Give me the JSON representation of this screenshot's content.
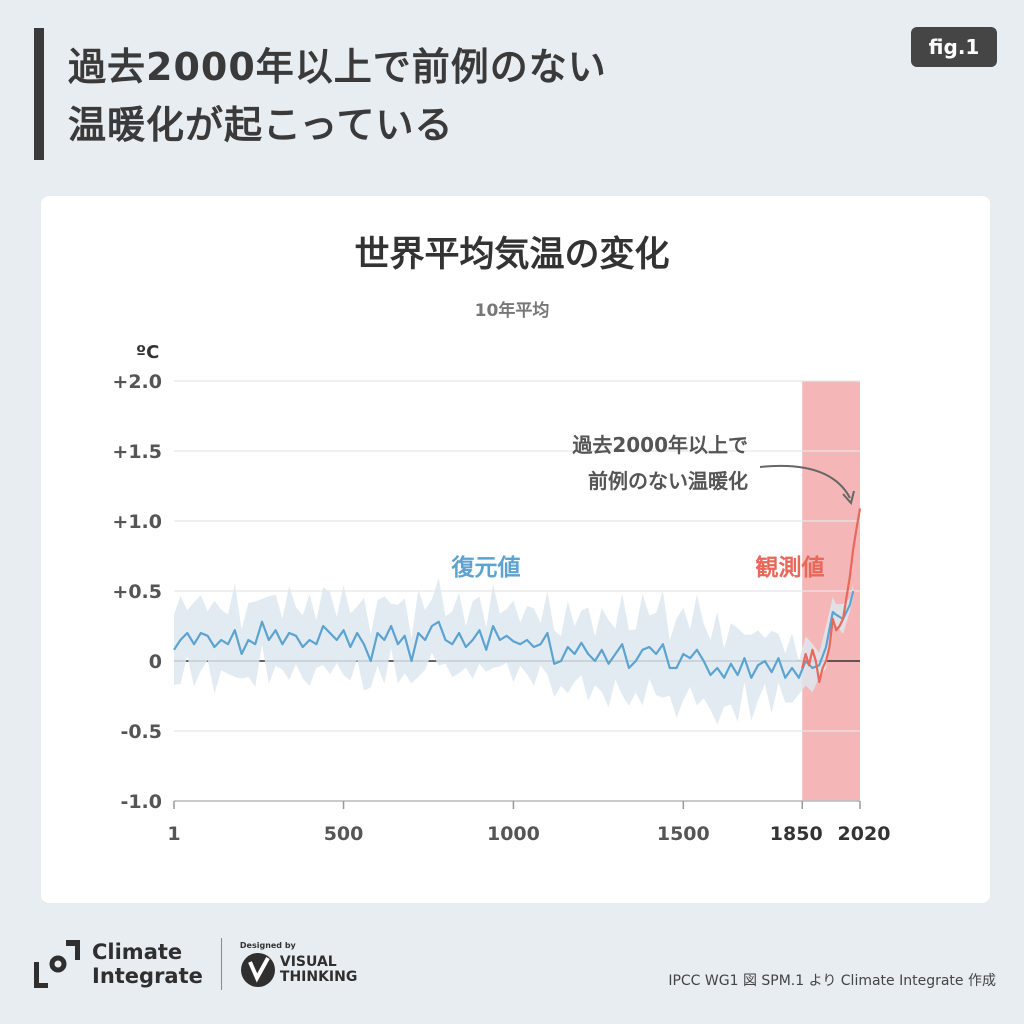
{
  "header": {
    "title_line1": "過去2000年以上で前例のない",
    "title_line2": "温暖化が起こっている",
    "badge": "fig.1"
  },
  "chart_data": {
    "type": "line",
    "title": "世界平均気温の変化",
    "subtitle": "10年平均",
    "ylabel": "ºC",
    "xlabel": "",
    "xlim": [
      1,
      2020
    ],
    "ylim": [
      -1.0,
      2.0
    ],
    "grid": true,
    "y_ticks": [
      2.0,
      1.5,
      1.0,
      0.5,
      0,
      -0.5,
      -1.0
    ],
    "y_tick_labels": [
      "+2.0",
      "+1.5",
      "+1.0",
      "+0.5",
      "0",
      "-0.5",
      "-1.0"
    ],
    "x_ticks": [
      1,
      500,
      1000,
      1500,
      1850,
      2020
    ],
    "x_tick_labels": [
      "1",
      "500",
      "1000",
      "1500",
      "1850",
      "2020"
    ],
    "highlight_range": [
      1850,
      2020
    ],
    "colors": {
      "reconstructed": "#5ba3d0",
      "observed": "#e8685a",
      "band": "#dde8ee",
      "highlight": "#f4b6b6"
    },
    "series": [
      {
        "name": "復元値",
        "x": [
          1,
          20,
          40,
          60,
          80,
          100,
          120,
          140,
          160,
          180,
          200,
          220,
          240,
          260,
          280,
          300,
          320,
          340,
          360,
          380,
          400,
          420,
          440,
          460,
          480,
          500,
          520,
          540,
          560,
          580,
          600,
          620,
          640,
          660,
          680,
          700,
          720,
          740,
          760,
          780,
          800,
          820,
          840,
          860,
          880,
          900,
          920,
          940,
          960,
          980,
          1000,
          1020,
          1040,
          1060,
          1080,
          1100,
          1120,
          1140,
          1160,
          1180,
          1200,
          1220,
          1240,
          1260,
          1280,
          1300,
          1320,
          1340,
          1360,
          1380,
          1400,
          1420,
          1440,
          1460,
          1480,
          1500,
          1520,
          1540,
          1560,
          1580,
          1600,
          1620,
          1640,
          1660,
          1680,
          1700,
          1720,
          1740,
          1760,
          1780,
          1800,
          1820,
          1840,
          1860,
          1880,
          1900,
          1920,
          1940,
          1950,
          1970,
          1990,
          2000
        ],
        "y": [
          0.08,
          0.15,
          0.2,
          0.12,
          0.2,
          0.18,
          0.1,
          0.15,
          0.12,
          0.22,
          0.05,
          0.15,
          0.12,
          0.28,
          0.15,
          0.22,
          0.12,
          0.2,
          0.18,
          0.1,
          0.15,
          0.12,
          0.25,
          0.2,
          0.15,
          0.22,
          0.1,
          0.2,
          0.12,
          0.0,
          0.2,
          0.15,
          0.25,
          0.12,
          0.18,
          0.0,
          0.2,
          0.15,
          0.25,
          0.28,
          0.15,
          0.12,
          0.2,
          0.1,
          0.15,
          0.22,
          0.08,
          0.25,
          0.15,
          0.18,
          0.14,
          0.12,
          0.15,
          0.1,
          0.12,
          0.2,
          -0.02,
          0.0,
          0.1,
          0.05,
          0.13,
          0.05,
          0.0,
          0.08,
          -0.02,
          0.05,
          0.12,
          -0.05,
          0.0,
          0.08,
          0.1,
          0.05,
          0.12,
          -0.05,
          -0.05,
          0.05,
          0.02,
          0.08,
          0.0,
          -0.1,
          -0.05,
          -0.12,
          -0.02,
          -0.1,
          0.02,
          -0.12,
          -0.03,
          0.0,
          -0.08,
          0.02,
          -0.12,
          -0.05,
          -0.12,
          0.0,
          -0.05,
          -0.03,
          0.1,
          0.35,
          0.33,
          0.3,
          0.4,
          0.5
        ],
        "uncertainty": {
          "x": [
            1,
            500,
            1000,
            1200,
            1400,
            1600,
            1800,
            1950,
            2000
          ],
          "half_width": [
            0.25,
            0.25,
            0.22,
            0.25,
            0.3,
            0.3,
            0.2,
            0.1,
            0.05
          ]
        }
      },
      {
        "name": "観測値",
        "x": [
          1850,
          1860,
          1870,
          1880,
          1890,
          1900,
          1910,
          1920,
          1930,
          1940,
          1950,
          1960,
          1970,
          1980,
          1990,
          2000,
          2010,
          2020
        ],
        "y": [
          -0.05,
          0.05,
          -0.03,
          0.08,
          0.0,
          -0.15,
          -0.05,
          0.0,
          0.1,
          0.3,
          0.22,
          0.25,
          0.3,
          0.45,
          0.6,
          0.8,
          0.95,
          1.09
        ]
      }
    ],
    "annotations": {
      "reconstructed_label": "復元値",
      "observed_label": "観測値",
      "callout_line1": "過去2000年以上で",
      "callout_line2": "前例のない温暖化"
    }
  },
  "footer": {
    "logo_line1": "Climate",
    "logo_line2": "Integrate",
    "designed_by": "Designed by",
    "vt_line1": "VISUAL",
    "vt_line2": "THINKING",
    "source": "IPCC WG1 図 SPM.1 より Climate Integrate 作成"
  }
}
